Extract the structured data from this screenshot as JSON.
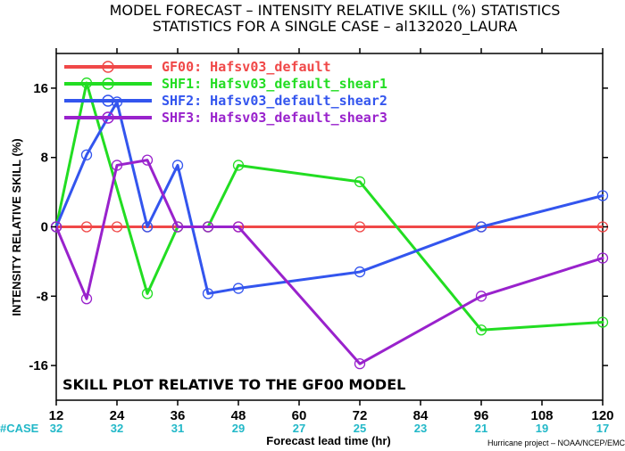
{
  "chart_data": {
    "type": "line",
    "title_line1": "MODEL FORECAST – INTENSITY RELATIVE SKILL (%) STATISTICS",
    "title_line2": "STATISTICS FOR A SINGLE CASE – al132020_LAURA",
    "xlabel": "Forecast lead time (hr)",
    "ylabel": "INTENSITY RELATIVE SKILL (%)",
    "annotation": "SKILL PLOT RELATIVE TO THE GF00 MODEL",
    "credit": "Hurricane project – NOAA/NCEP/EMC",
    "xlim": [
      12,
      120
    ],
    "ylim": [
      -20,
      20
    ],
    "x_ticks": [
      "12",
      "24",
      "36",
      "48",
      "60",
      "72",
      "84",
      "96",
      "108",
      "120"
    ],
    "y_ticks": [
      "16",
      "8",
      "0",
      "-8",
      "-16"
    ],
    "case_label": "#CASE",
    "case_counts": [
      "32",
      "32",
      "31",
      "29",
      "27",
      "25",
      "23",
      "21",
      "19",
      "17"
    ],
    "series": [
      {
        "name": "GF00: Hafsv03_default",
        "color": "#f04848",
        "x": [
          12,
          18,
          24,
          30,
          36,
          42,
          48,
          72,
          96,
          120
        ],
        "y": [
          0,
          0,
          0,
          0,
          0,
          0,
          0,
          0,
          0,
          0
        ]
      },
      {
        "name": "SHF1: Hafsv03_default_shear1",
        "color": "#22dd22",
        "x": [
          12,
          18,
          30,
          36,
          42,
          48,
          72,
          96,
          120
        ],
        "y": [
          0,
          16.6,
          -7.7,
          0,
          0,
          7.1,
          5.2,
          -11.9,
          -11.0
        ]
      },
      {
        "name": "SHF2: Hafsv03_default_shear2",
        "color": "#3355ee",
        "x": [
          12,
          18,
          24,
          30,
          36,
          42,
          48,
          72,
          96,
          120
        ],
        "y": [
          0,
          8.3,
          14.4,
          0,
          7.1,
          -7.7,
          -7.1,
          -5.2,
          0,
          3.6
        ]
      },
      {
        "name": "SHF3: Hafsv03_default_shear3",
        "color": "#9922cc",
        "x": [
          12,
          18,
          24,
          30,
          36,
          42,
          48,
          72,
          96,
          120
        ],
        "y": [
          0,
          -8.3,
          7.1,
          7.7,
          0,
          0,
          0,
          -15.8,
          -8.0,
          -3.6
        ]
      }
    ]
  }
}
